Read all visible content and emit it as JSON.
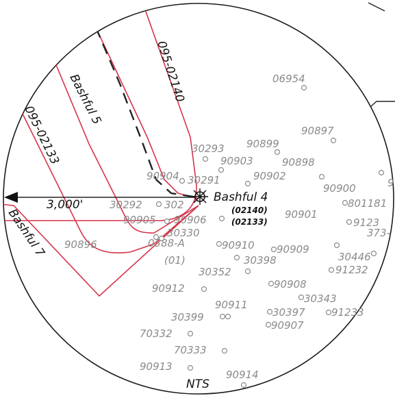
{
  "map": {
    "colors": {
      "lease_line": "#d6334a",
      "well_label": "#8a8a8a",
      "ring": "#1a1a1a"
    },
    "lease_labels": {
      "l0140": "095-02140",
      "l0133": "095-02133",
      "b5": "Bashful 5",
      "b7": "Bashful 7"
    },
    "focus_well": {
      "name": "Bashful 4",
      "code_a": "(02140)",
      "code_b": "(02133)"
    },
    "radius_label": "3,000'",
    "scale_note": "NTS",
    "extra_labels": {
      "a388": "0388-A",
      "sub01": "(01)",
      "t373": "373-"
    },
    "wells": {
      "w06954": "06954",
      "w90897": "90897",
      "w30293": "30293",
      "w90899": "90899",
      "w90903": "90903",
      "w90898": "90898",
      "w90904": "90904",
      "w30291": "30291",
      "w90902": "90902",
      "w90900": "90900",
      "w9": "9",
      "w801181": "801181",
      "w30292": "30292",
      "w302x": "302",
      "w90905": "90905",
      "w90906": "90906",
      "w90901": "90901",
      "w9123": "9123",
      "w90896": "90896",
      "w30330": "30330",
      "w90910": "90910",
      "w90909": "90909",
      "w30398": "30398",
      "w30446": "30446",
      "w91232": "91232",
      "w30352": "30352",
      "w90912": "90912",
      "w90908": "90908",
      "w30343": "30343",
      "w90911": "90911",
      "w30399": "30399",
      "w30397": "30397",
      "w91233": "91233",
      "w90907": "90907",
      "w70332": "70332",
      "w70333": "70333",
      "w90913": "90913",
      "w90914": "90914"
    }
  }
}
